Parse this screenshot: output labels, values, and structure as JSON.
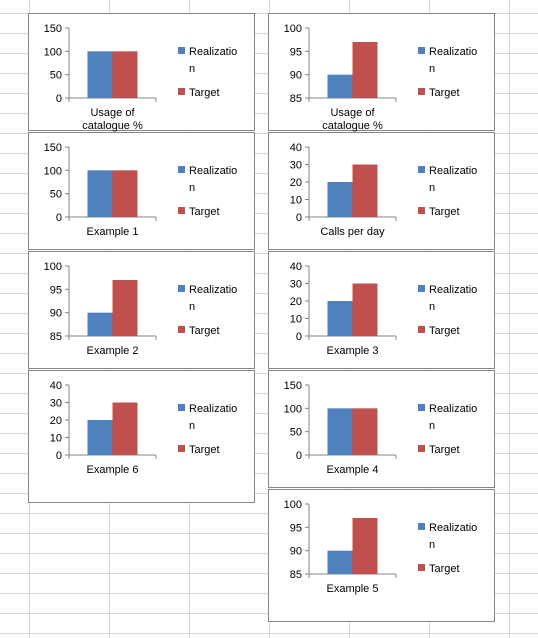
{
  "colors": {
    "realization": "#4f81bd",
    "target": "#c0504d"
  },
  "legend": {
    "line1": "Realizatio",
    "line2": "n",
    "target": "Target"
  },
  "chart_data": [
    {
      "type": "bar",
      "categories": [
        "Usage of catalogue %"
      ],
      "cat_lines": [
        "Usage of",
        "catalogue %"
      ],
      "series": [
        {
          "name": "Realization",
          "values": [
            100
          ]
        },
        {
          "name": "Target",
          "values": [
            100
          ]
        }
      ],
      "ylim": [
        0,
        150
      ],
      "yticks": [
        0,
        50,
        100,
        150
      ]
    },
    {
      "type": "bar",
      "categories": [
        "Usage of catalogue %"
      ],
      "cat_lines": [
        "Usage of",
        "catalogue %"
      ],
      "series": [
        {
          "name": "Realization",
          "values": [
            90
          ]
        },
        {
          "name": "Target",
          "values": [
            97
          ]
        }
      ],
      "ylim": [
        85,
        100
      ],
      "yticks": [
        85,
        90,
        95,
        100
      ]
    },
    {
      "type": "bar",
      "categories": [
        "Example 1"
      ],
      "cat_lines": [
        "Example 1"
      ],
      "series": [
        {
          "name": "Realization",
          "values": [
            100
          ]
        },
        {
          "name": "Target",
          "values": [
            100
          ]
        }
      ],
      "ylim": [
        0,
        150
      ],
      "yticks": [
        0,
        50,
        100,
        150
      ]
    },
    {
      "type": "bar",
      "categories": [
        "Calls per day"
      ],
      "cat_lines": [
        "Calls per day"
      ],
      "series": [
        {
          "name": "Realization",
          "values": [
            20
          ]
        },
        {
          "name": "Target",
          "values": [
            30
          ]
        }
      ],
      "ylim": [
        0,
        40
      ],
      "yticks": [
        0,
        10,
        20,
        30,
        40
      ]
    },
    {
      "type": "bar",
      "categories": [
        "Example 2"
      ],
      "cat_lines": [
        "Example 2"
      ],
      "series": [
        {
          "name": "Realization",
          "values": [
            90
          ]
        },
        {
          "name": "Target",
          "values": [
            97
          ]
        }
      ],
      "ylim": [
        85,
        100
      ],
      "yticks": [
        85,
        90,
        95,
        100
      ]
    },
    {
      "type": "bar",
      "categories": [
        "Example 3"
      ],
      "cat_lines": [
        "Example 3"
      ],
      "series": [
        {
          "name": "Realization",
          "values": [
            20
          ]
        },
        {
          "name": "Target",
          "values": [
            30
          ]
        }
      ],
      "ylim": [
        0,
        40
      ],
      "yticks": [
        0,
        10,
        20,
        30,
        40
      ]
    },
    {
      "type": "bar",
      "categories": [
        "Example 6"
      ],
      "cat_lines": [
        "Example 6"
      ],
      "series": [
        {
          "name": "Realization",
          "values": [
            20
          ]
        },
        {
          "name": "Target",
          "values": [
            30
          ]
        }
      ],
      "ylim": [
        0,
        40
      ],
      "yticks": [
        0,
        10,
        20,
        30,
        40
      ]
    },
    {
      "type": "bar",
      "categories": [
        "Example 4"
      ],
      "cat_lines": [
        "Example 4"
      ],
      "series": [
        {
          "name": "Realization",
          "values": [
            100
          ]
        },
        {
          "name": "Target",
          "values": [
            100
          ]
        }
      ],
      "ylim": [
        0,
        150
      ],
      "yticks": [
        0,
        50,
        100,
        150
      ]
    },
    {
      "type": "bar",
      "categories": [
        "Example 5"
      ],
      "cat_lines": [
        "Example 5"
      ],
      "series": [
        {
          "name": "Realization",
          "values": [
            90
          ]
        },
        {
          "name": "Target",
          "values": [
            97
          ]
        }
      ],
      "ylim": [
        85,
        100
      ],
      "yticks": [
        85,
        90,
        95,
        100
      ]
    }
  ]
}
